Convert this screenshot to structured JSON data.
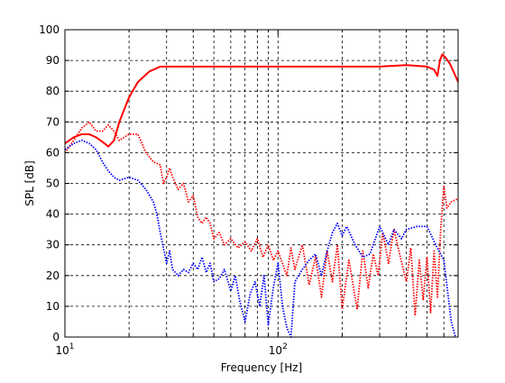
{
  "chart_data": {
    "type": "line",
    "title": "",
    "xlabel": "Frequency [Hz]",
    "ylabel": "SPL [dB]",
    "xscale": "log",
    "xlim": [
      10,
      700
    ],
    "ylim": [
      0,
      100
    ],
    "grid": true,
    "grid_style": "dashed-black",
    "legend": "none",
    "x_major_ticks": [
      10,
      100
    ],
    "x_major_tick_labels": [
      {
        "base": "10",
        "exp": "1"
      },
      {
        "base": "10",
        "exp": "2"
      }
    ],
    "x_minor_ticks": [
      20,
      30,
      40,
      50,
      60,
      70,
      80,
      90,
      200,
      300,
      400,
      500,
      600,
      700
    ],
    "y_ticks": [
      0,
      10,
      20,
      30,
      40,
      50,
      60,
      70,
      80,
      90,
      100
    ],
    "y_tick_labels": [
      "0",
      "10",
      "20",
      "30",
      "40",
      "50",
      "60",
      "70",
      "80",
      "90",
      "100"
    ],
    "series": [
      {
        "style": "solid",
        "color": "#ff0000",
        "points": [
          [
            10,
            63
          ],
          [
            11,
            65
          ],
          [
            12,
            66
          ],
          [
            13,
            66
          ],
          [
            14,
            65
          ],
          [
            15,
            63.5
          ],
          [
            16,
            62
          ],
          [
            17,
            64
          ],
          [
            18,
            70
          ],
          [
            20,
            78
          ],
          [
            22,
            83
          ],
          [
            25,
            86.5
          ],
          [
            28,
            88
          ],
          [
            30,
            88
          ],
          [
            40,
            88
          ],
          [
            60,
            88
          ],
          [
            100,
            88
          ],
          [
            200,
            88
          ],
          [
            300,
            88
          ],
          [
            400,
            88.5
          ],
          [
            500,
            88
          ],
          [
            540,
            87
          ],
          [
            560,
            85
          ],
          [
            575,
            90
          ],
          [
            590,
            92
          ],
          [
            610,
            91
          ],
          [
            640,
            89
          ],
          [
            670,
            86
          ],
          [
            700,
            83
          ]
        ]
      },
      {
        "style": "dotted",
        "color": "#ff0000",
        "points": [
          [
            10,
            60
          ],
          [
            11,
            64
          ],
          [
            12,
            68
          ],
          [
            13,
            70
          ],
          [
            14,
            67
          ],
          [
            15,
            67
          ],
          [
            16,
            69
          ],
          [
            17,
            67
          ],
          [
            18,
            64
          ],
          [
            20,
            66
          ],
          [
            22,
            66
          ],
          [
            24,
            60
          ],
          [
            26,
            57
          ],
          [
            28,
            56
          ],
          [
            29,
            50
          ],
          [
            30,
            52
          ],
          [
            31,
            55
          ],
          [
            32,
            52
          ],
          [
            34,
            48
          ],
          [
            36,
            50
          ],
          [
            38,
            44
          ],
          [
            40,
            46
          ],
          [
            42,
            39
          ],
          [
            44,
            37
          ],
          [
            46,
            39
          ],
          [
            48,
            37
          ],
          [
            50,
            32
          ],
          [
            53,
            34
          ],
          [
            56,
            30
          ],
          [
            60,
            32
          ],
          [
            65,
            29
          ],
          [
            70,
            31
          ],
          [
            75,
            28
          ],
          [
            80,
            32
          ],
          [
            85,
            26
          ],
          [
            90,
            30
          ],
          [
            95,
            25
          ],
          [
            100,
            28
          ],
          [
            110,
            20
          ],
          [
            115,
            29
          ],
          [
            120,
            22
          ],
          [
            130,
            30
          ],
          [
            140,
            17
          ],
          [
            150,
            26
          ],
          [
            160,
            13
          ],
          [
            170,
            28
          ],
          [
            180,
            18
          ],
          [
            190,
            30
          ],
          [
            200,
            9
          ],
          [
            215,
            25
          ],
          [
            225,
            17
          ],
          [
            235,
            9
          ],
          [
            250,
            28
          ],
          [
            265,
            16
          ],
          [
            280,
            27
          ],
          [
            295,
            20
          ],
          [
            310,
            34
          ],
          [
            330,
            24
          ],
          [
            350,
            35
          ],
          [
            375,
            26
          ],
          [
            400,
            18
          ],
          [
            420,
            29
          ],
          [
            440,
            7
          ],
          [
            460,
            25
          ],
          [
            480,
            12
          ],
          [
            500,
            26
          ],
          [
            520,
            8
          ],
          [
            540,
            28
          ],
          [
            560,
            13
          ],
          [
            580,
            35
          ],
          [
            600,
            49
          ],
          [
            620,
            42
          ],
          [
            650,
            44
          ],
          [
            700,
            45
          ]
        ]
      },
      {
        "style": "dotted",
        "color": "#0000ff",
        "points": [
          [
            10,
            61
          ],
          [
            11,
            63
          ],
          [
            12,
            64
          ],
          [
            13,
            63
          ],
          [
            14,
            61
          ],
          [
            15,
            57
          ],
          [
            16,
            54
          ],
          [
            17,
            52
          ],
          [
            18,
            51
          ],
          [
            20,
            52
          ],
          [
            22,
            51
          ],
          [
            24,
            48
          ],
          [
            26,
            44
          ],
          [
            27,
            40
          ],
          [
            28,
            34
          ],
          [
            30,
            24
          ],
          [
            31,
            28
          ],
          [
            32,
            22
          ],
          [
            34,
            20
          ],
          [
            36,
            22
          ],
          [
            38,
            21
          ],
          [
            40,
            24
          ],
          [
            42,
            22
          ],
          [
            44,
            26
          ],
          [
            46,
            21
          ],
          [
            48,
            24
          ],
          [
            50,
            18
          ],
          [
            53,
            19
          ],
          [
            56,
            22
          ],
          [
            60,
            15
          ],
          [
            63,
            20
          ],
          [
            66,
            12
          ],
          [
            70,
            5
          ],
          [
            74,
            14
          ],
          [
            78,
            18
          ],
          [
            82,
            10
          ],
          [
            86,
            20
          ],
          [
            90,
            4
          ],
          [
            95,
            16
          ],
          [
            100,
            24
          ],
          [
            105,
            10
          ],
          [
            110,
            3
          ],
          [
            115,
            0
          ],
          [
            120,
            18
          ],
          [
            130,
            22
          ],
          [
            140,
            25
          ],
          [
            150,
            27
          ],
          [
            160,
            20
          ],
          [
            170,
            28
          ],
          [
            180,
            34
          ],
          [
            190,
            37
          ],
          [
            200,
            33
          ],
          [
            210,
            36
          ],
          [
            230,
            30
          ],
          [
            250,
            26
          ],
          [
            270,
            27
          ],
          [
            300,
            36
          ],
          [
            330,
            30
          ],
          [
            350,
            35
          ],
          [
            380,
            32
          ],
          [
            400,
            35
          ],
          [
            450,
            36
          ],
          [
            500,
            36
          ],
          [
            550,
            30
          ],
          [
            600,
            25
          ],
          [
            650,
            5
          ],
          [
            680,
            0
          ]
        ]
      }
    ]
  }
}
